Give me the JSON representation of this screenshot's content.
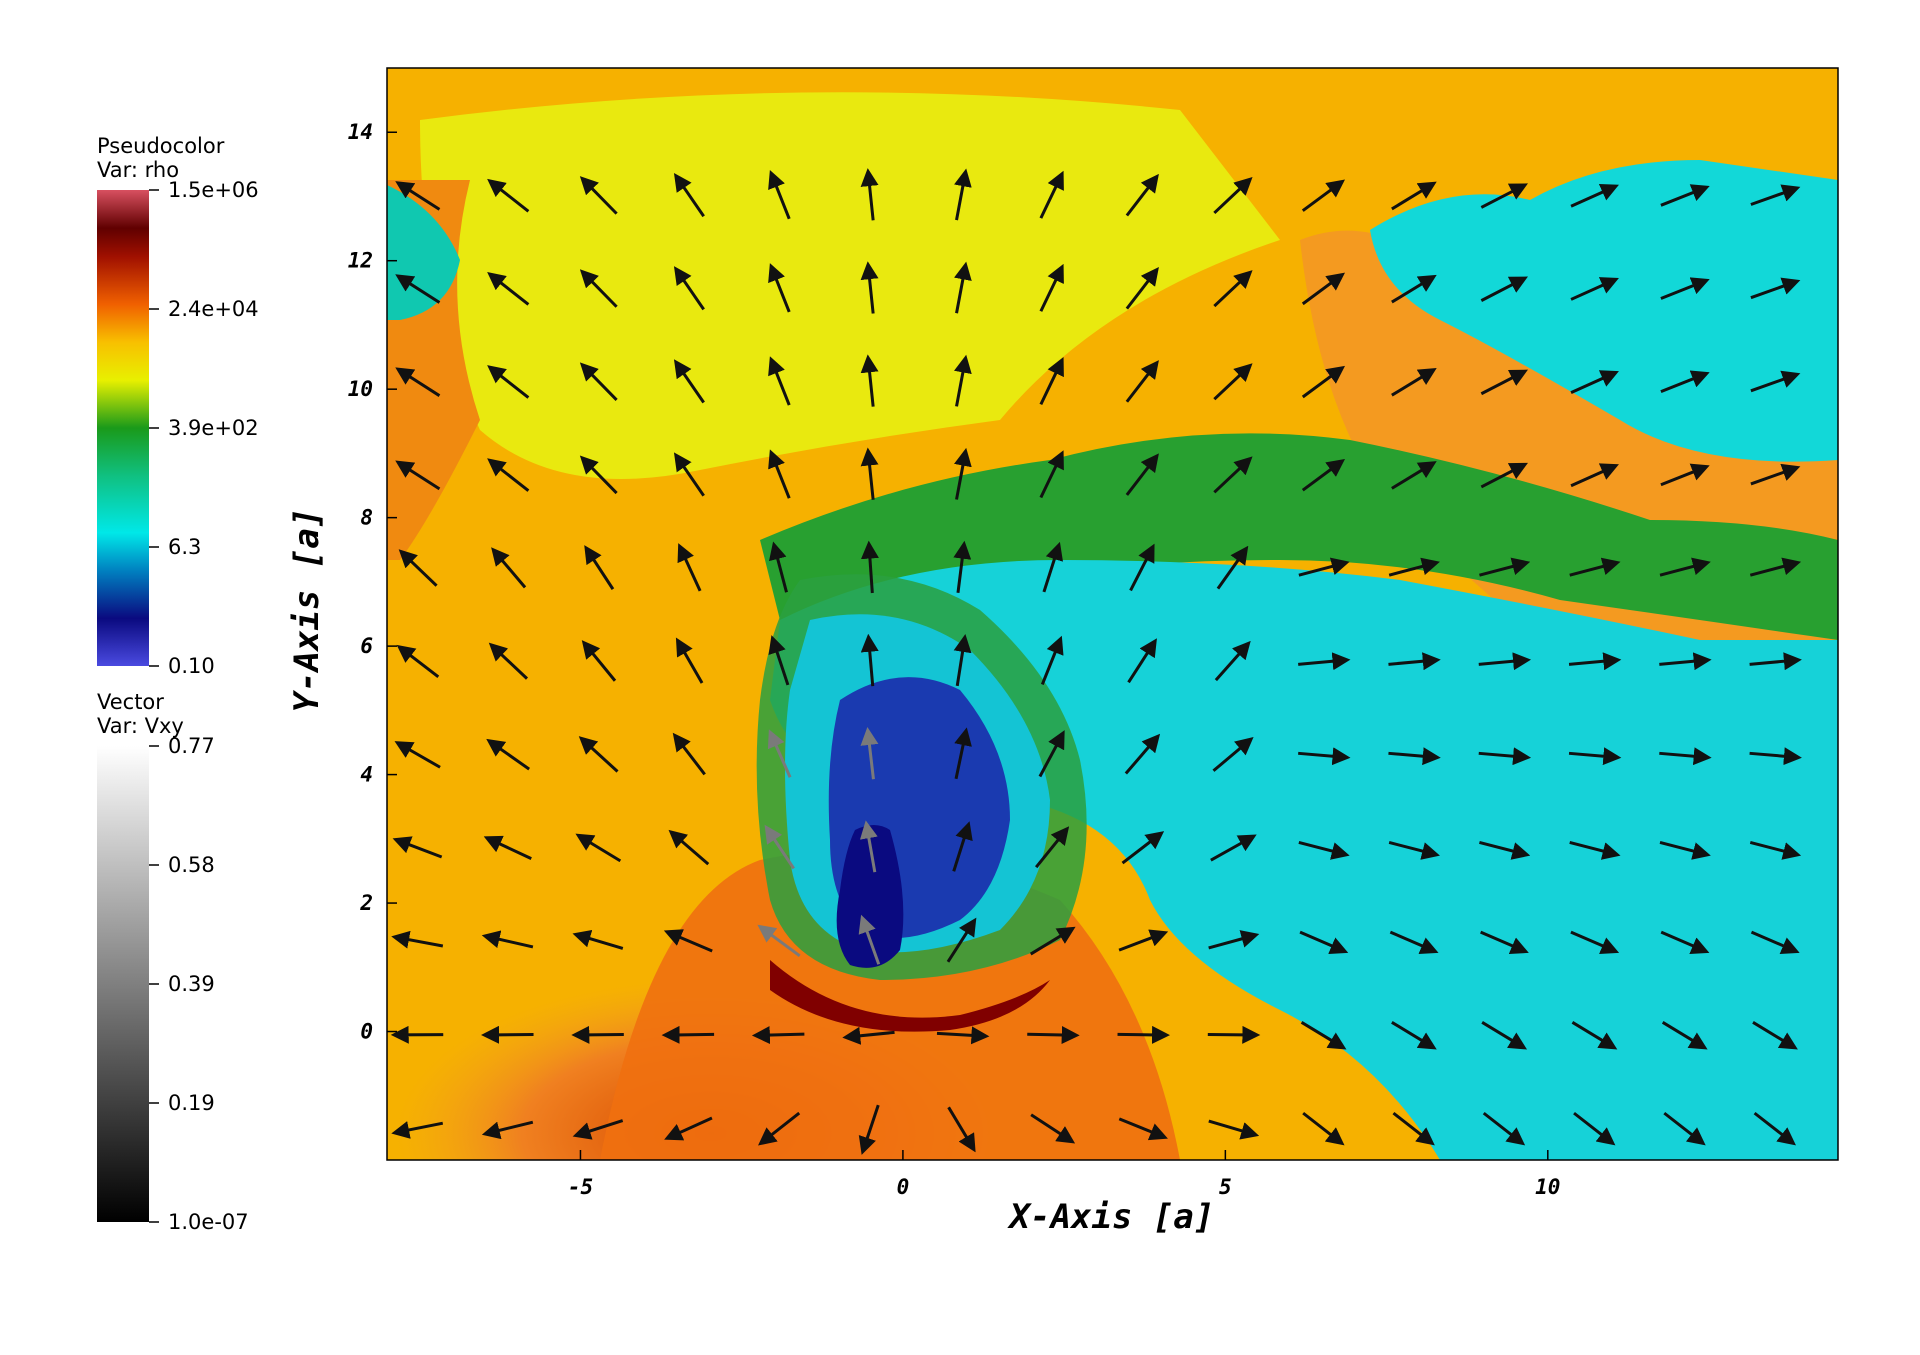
{
  "colors": {
    "low": "#4040d8",
    "deep_blue": "#0a0a80",
    "cyan": "#00e0e0",
    "green": "#1a9a1a",
    "yellow": "#f0f000",
    "orange": "#f06000",
    "dark_red": "#6a0000",
    "high": "#d04050",
    "vector_arrow": "#111111",
    "vector_arrow_light": "#777777"
  },
  "legend_pseudocolor": {
    "title": "Pseudocolor",
    "variable": "Var: rho",
    "ticks": [
      "1.5e+06",
      "2.4e+04",
      "3.9e+02",
      "6.3",
      "0.10"
    ]
  },
  "legend_vector": {
    "title": "Vector",
    "variable": "Var: Vxy",
    "ticks": [
      "0.77",
      "0.58",
      "0.39",
      "0.19",
      "1.0e-07"
    ]
  },
  "chart_data": {
    "type": "heatmap",
    "field": "rho",
    "vector_field": "Vxy",
    "xlabel": "X-Axis [a]",
    "ylabel": "Y-Axis [a]",
    "xlim": [
      -8,
      14.5
    ],
    "ylim": [
      -2,
      15
    ],
    "xticks": [
      -5,
      0,
      5,
      10
    ],
    "xtick_labels": [
      "-5",
      "0",
      "5",
      "10"
    ],
    "yticks": [
      0,
      2,
      4,
      6,
      8,
      10,
      12,
      14
    ],
    "ytick_labels": [
      "0",
      "2",
      "4",
      "6",
      "8",
      "10",
      "12",
      "14"
    ],
    "colorbar_range": [
      0.1,
      1500000
    ],
    "colorbar_scale": "log",
    "vector_range": [
      1e-07,
      0.77
    ],
    "grid": false
  }
}
